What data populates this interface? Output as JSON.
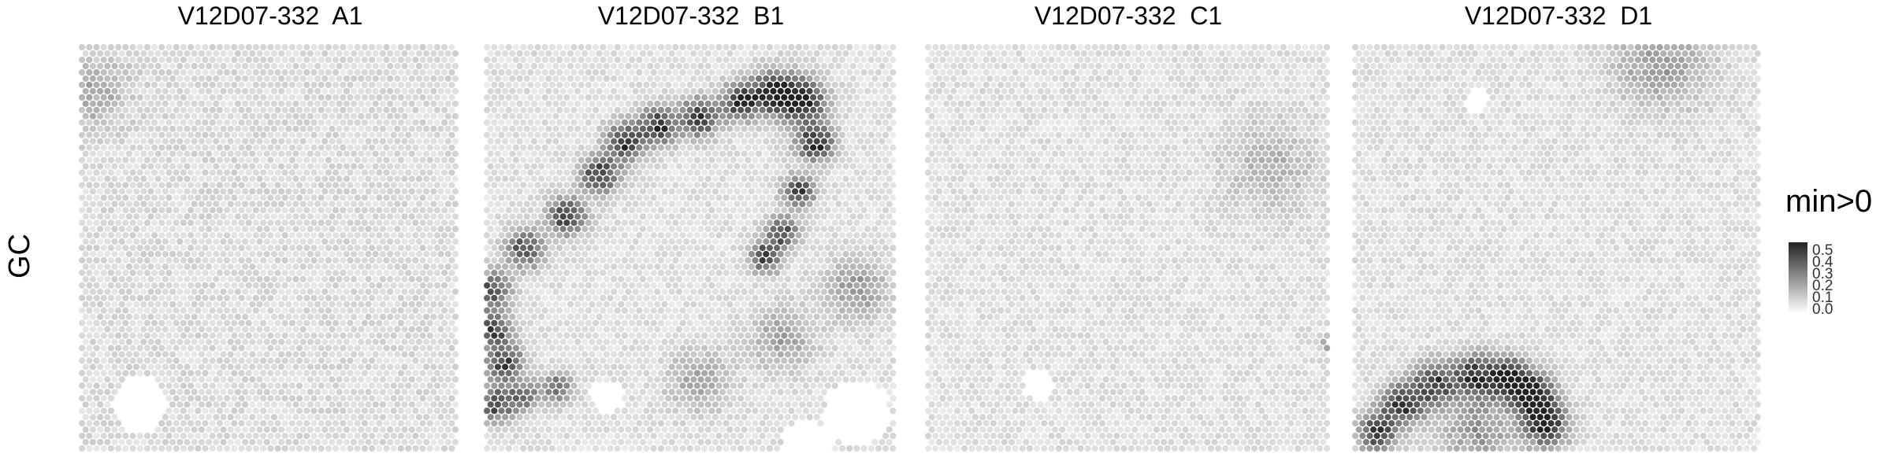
{
  "figure": {
    "row_label": "GC",
    "legend": {
      "title": "min>0",
      "ticks": [
        "0.5",
        "0.4",
        "0.3",
        "0.2",
        "0.1",
        "0.0"
      ],
      "low_color": "#ffffff",
      "high_color": "#222222"
    }
  },
  "chart_data": [
    {
      "type": "heatmap",
      "title": "V12D07-332  A1",
      "value_range": [
        0,
        0.55
      ],
      "baseline": 0.07,
      "hotspots": [
        {
          "x": 0.04,
          "y": 0.12,
          "value": 0.12,
          "spread": 0.06
        }
      ],
      "voids": [
        {
          "x": 0.16,
          "y": 0.88,
          "r": 0.07
        }
      ]
    },
    {
      "type": "heatmap",
      "title": "V12D07-332  B1",
      "value_range": [
        0,
        0.55
      ],
      "baseline": 0.06,
      "hotspots": [
        {
          "x": 0.02,
          "y": 0.6,
          "value": 0.38,
          "spread": 0.03
        },
        {
          "x": 0.1,
          "y": 0.5,
          "value": 0.42,
          "spread": 0.03
        },
        {
          "x": 0.2,
          "y": 0.42,
          "value": 0.45,
          "spread": 0.03
        },
        {
          "x": 0.28,
          "y": 0.32,
          "value": 0.48,
          "spread": 0.03
        },
        {
          "x": 0.34,
          "y": 0.24,
          "value": 0.5,
          "spread": 0.03
        },
        {
          "x": 0.42,
          "y": 0.2,
          "value": 0.5,
          "spread": 0.03
        },
        {
          "x": 0.52,
          "y": 0.18,
          "value": 0.5,
          "spread": 0.03
        },
        {
          "x": 0.62,
          "y": 0.14,
          "value": 0.48,
          "spread": 0.03
        },
        {
          "x": 0.7,
          "y": 0.12,
          "value": 0.52,
          "spread": 0.035
        },
        {
          "x": 0.77,
          "y": 0.14,
          "value": 0.55,
          "spread": 0.035
        },
        {
          "x": 0.8,
          "y": 0.24,
          "value": 0.5,
          "spread": 0.03
        },
        {
          "x": 0.76,
          "y": 0.36,
          "value": 0.45,
          "spread": 0.025
        },
        {
          "x": 0.72,
          "y": 0.46,
          "value": 0.42,
          "spread": 0.025
        },
        {
          "x": 0.68,
          "y": 0.52,
          "value": 0.45,
          "spread": 0.025
        },
        {
          "x": 0.02,
          "y": 0.7,
          "value": 0.45,
          "spread": 0.03
        },
        {
          "x": 0.05,
          "y": 0.78,
          "value": 0.42,
          "spread": 0.03
        },
        {
          "x": 0.03,
          "y": 0.88,
          "value": 0.4,
          "spread": 0.03
        },
        {
          "x": 0.1,
          "y": 0.86,
          "value": 0.3,
          "spread": 0.025
        },
        {
          "x": 0.18,
          "y": 0.84,
          "value": 0.3,
          "spread": 0.025
        },
        {
          "x": 0.52,
          "y": 0.82,
          "value": 0.14,
          "spread": 0.05
        },
        {
          "x": 0.72,
          "y": 0.72,
          "value": 0.16,
          "spread": 0.05
        },
        {
          "x": 0.9,
          "y": 0.6,
          "value": 0.18,
          "spread": 0.05
        }
      ],
      "voids": [
        {
          "x": 0.3,
          "y": 0.86,
          "r": 0.04
        },
        {
          "x": 0.9,
          "y": 0.9,
          "r": 0.08
        },
        {
          "x": 0.78,
          "y": 0.98,
          "r": 0.06
        }
      ]
    },
    {
      "type": "heatmap",
      "title": "V12D07-332  C1",
      "value_range": [
        0,
        0.55
      ],
      "baseline": 0.06,
      "hotspots": [
        {
          "x": 0.85,
          "y": 0.3,
          "value": 0.1,
          "spread": 0.08
        },
        {
          "x": 0.99,
          "y": 0.73,
          "value": 0.3,
          "spread": 0.01
        }
      ],
      "voids": [
        {
          "x": 0.28,
          "y": 0.83,
          "r": 0.04
        }
      ]
    },
    {
      "type": "heatmap",
      "title": "V12D07-332  D1",
      "value_range": [
        0,
        0.55
      ],
      "baseline": 0.06,
      "hotspots": [
        {
          "x": 0.75,
          "y": 0.04,
          "value": 0.16,
          "spread": 0.08
        },
        {
          "x": 0.06,
          "y": 0.95,
          "value": 0.45,
          "spread": 0.03
        },
        {
          "x": 0.12,
          "y": 0.88,
          "value": 0.45,
          "spread": 0.035
        },
        {
          "x": 0.2,
          "y": 0.83,
          "value": 0.45,
          "spread": 0.035
        },
        {
          "x": 0.3,
          "y": 0.81,
          "value": 0.45,
          "spread": 0.035
        },
        {
          "x": 0.38,
          "y": 0.82,
          "value": 0.48,
          "spread": 0.035
        },
        {
          "x": 0.44,
          "y": 0.86,
          "value": 0.52,
          "spread": 0.035
        },
        {
          "x": 0.47,
          "y": 0.93,
          "value": 0.52,
          "spread": 0.035
        },
        {
          "x": 0.3,
          "y": 0.94,
          "value": 0.18,
          "spread": 0.06
        }
      ],
      "voids": [
        {
          "x": 0.3,
          "y": 0.14,
          "r": 0.03
        }
      ]
    }
  ]
}
